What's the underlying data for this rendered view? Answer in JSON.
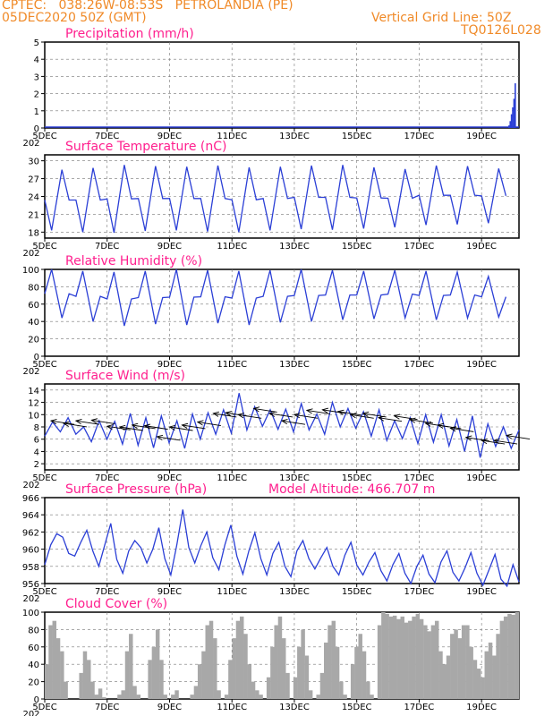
{
  "header": {
    "line1": "CPTEC:   038:26W-08:53S   PETROLANDIA (PE)",
    "line2": "05DEC2020 50Z (GMT)",
    "grid_note": "Vertical Grid Line: 50Z",
    "code": "TQ0126L028"
  },
  "colors": {
    "header": "#f08a28",
    "title": "#ff1f8e",
    "line": "#2b3fd6",
    "cloud": "#a8a8a8",
    "grid": "#777777"
  },
  "x_ticks": [
    "5DEC",
    "7DEC",
    "9DEC",
    "11DEC",
    "13DEC",
    "15DEC",
    "17DEC",
    "19DEC"
  ],
  "x_tick_days": [
    0,
    2,
    4,
    6,
    8,
    10,
    12,
    14
  ],
  "x_range_days": [
    0,
    15.2
  ],
  "year_fragment": "202",
  "chart_data": [
    {
      "id": "precip",
      "type": "bar",
      "title": "Precipitation (mm/h)",
      "ylim": [
        0,
        5
      ],
      "yticks": [
        0,
        1,
        2,
        3,
        4,
        5
      ],
      "x_days": [
        14.88,
        14.92,
        14.96,
        15.0,
        15.04,
        15.08
      ],
      "values": [
        0.15,
        0.4,
        0.8,
        1.2,
        1.7,
        2.6
      ]
    },
    {
      "id": "temp",
      "type": "line",
      "title": "Surface Temperature (nC)",
      "ylim": [
        17,
        31
      ],
      "yticks": [
        18,
        21,
        24,
        27,
        30
      ],
      "min_values": [
        18.3,
        18.0,
        17.9,
        18.2,
        18.3,
        18.1,
        18.0,
        18.3,
        18.5,
        18.4,
        18.6,
        18.8,
        19.2,
        19.3,
        19.5
      ],
      "max_values": [
        28.5,
        28.8,
        29.3,
        29.1,
        29.0,
        29.2,
        28.9,
        29.0,
        29.2,
        29.3,
        28.9,
        28.6,
        29.2,
        29.1,
        28.7
      ]
    },
    {
      "id": "rh",
      "type": "line",
      "title": "Relative Humidity (%)",
      "ylim": [
        0,
        100
      ],
      "yticks": [
        0,
        20,
        40,
        60,
        80,
        100
      ],
      "min_values": [
        44,
        40,
        35,
        37,
        36,
        38,
        36,
        39,
        40,
        42,
        43,
        44,
        42,
        44,
        45
      ],
      "max_values": [
        100,
        98,
        97,
        98,
        100,
        99,
        98,
        99,
        100,
        99,
        98,
        99,
        98,
        97,
        92
      ]
    },
    {
      "id": "wind",
      "type": "line",
      "title": "Surface Wind (m/s)",
      "ylim": [
        1,
        15
      ],
      "yticks": [
        2,
        4,
        6,
        8,
        10,
        12,
        14
      ],
      "values": [
        6.5,
        8.8,
        7.2,
        9.5,
        6.8,
        8.0,
        5.6,
        9.0,
        6.0,
        8.9,
        5.2,
        10.2,
        5.0,
        9.5,
        4.6,
        9.8,
        5.4,
        9.0,
        4.5,
        10.1,
        6.0,
        10.3,
        6.8,
        10.8,
        7.0,
        13.5,
        7.5,
        11.3,
        8.1,
        10.8,
        7.6,
        10.9,
        7.2,
        11.8,
        7.5,
        10.1,
        6.8,
        12.0,
        8.0,
        11.0,
        7.8,
        10.5,
        6.5,
        10.8,
        5.8,
        9.0,
        6.1,
        9.5,
        5.3,
        10.0,
        5.5,
        10.0,
        4.9,
        9.2,
        4.0,
        9.8,
        3.0,
        8.5,
        4.8,
        8.0,
        4.5,
        7.5
      ],
      "arrows_days": [
        0.2,
        0.6,
        1.0,
        1.5,
        2.0,
        2.4,
        2.8,
        3.2,
        3.6,
        4.0,
        4.4,
        4.9,
        5.4,
        5.8,
        6.2,
        6.7,
        7.2,
        7.6,
        8.0,
        8.4,
        8.9,
        9.4,
        9.8,
        10.2,
        10.7,
        11.2,
        11.7,
        12.2,
        12.6,
        13.0,
        13.5,
        14.0,
        14.4,
        14.8
      ],
      "arrows_speed": [
        9.0,
        8.6,
        9.0,
        9.1,
        8.1,
        8.0,
        8.3,
        8.2,
        6.4,
        8.0,
        8.3,
        8.8,
        10.2,
        10.3,
        10.0,
        11.0,
        10.2,
        9.0,
        10.0,
        10.7,
        10.8,
        10.5,
        10.0,
        10.2,
        9.5,
        9.8,
        9.2,
        8.6,
        8.3,
        7.8,
        6.3,
        5.8,
        5.8,
        6.6
      ]
    },
    {
      "id": "pres",
      "type": "line",
      "title": "Surface Pressure (hPa)",
      "annotation": "Model Altitude: 466.707 m",
      "ylim": [
        956,
        966
      ],
      "yticks": [
        956,
        958,
        960,
        962,
        964,
        966
      ],
      "values": [
        958.2,
        960.5,
        961.8,
        961.4,
        959.5,
        959.2,
        960.8,
        962.2,
        959.8,
        958.0,
        960.5,
        963.0,
        958.8,
        957.2,
        959.8,
        961.0,
        960.2,
        958.4,
        960.0,
        962.5,
        958.9,
        957.0,
        960.5,
        964.6,
        960.2,
        958.4,
        960.4,
        962.0,
        959.0,
        957.6,
        960.5,
        962.8,
        959.2,
        957.1,
        959.8,
        961.9,
        958.9,
        957.0,
        959.5,
        960.8,
        958.0,
        956.8,
        959.8,
        961.0,
        958.9,
        957.7,
        959.0,
        960.2,
        958.0,
        957.0,
        959.3,
        960.8,
        958.1,
        957.0,
        958.5,
        959.6,
        957.5,
        956.3,
        958.2,
        959.5,
        957.2,
        956.0,
        958.0,
        959.3,
        957.1,
        956.1,
        958.5,
        959.8,
        957.3,
        956.3,
        957.8,
        959.6,
        957.2,
        955.8,
        957.6,
        959.4,
        956.5,
        955.7,
        958.2,
        956.2
      ]
    },
    {
      "id": "cloud",
      "type": "area",
      "title": "Cloud Cover (%)",
      "ylim": [
        0,
        100
      ],
      "yticks": [
        0,
        20,
        40,
        60,
        80,
        100
      ],
      "values": [
        40,
        85,
        90,
        70,
        55,
        20,
        0,
        0,
        0,
        30,
        55,
        45,
        20,
        5,
        12,
        2,
        0,
        0,
        0,
        5,
        10,
        55,
        75,
        15,
        5,
        0,
        0,
        45,
        60,
        80,
        45,
        5,
        0,
        5,
        10,
        0,
        0,
        0,
        5,
        15,
        40,
        55,
        85,
        90,
        70,
        10,
        0,
        5,
        45,
        70,
        90,
        95,
        75,
        40,
        20,
        10,
        5,
        0,
        25,
        60,
        85,
        95,
        70,
        30,
        0,
        25,
        60,
        80,
        50,
        10,
        0,
        5,
        30,
        65,
        85,
        90,
        60,
        20,
        5,
        0,
        40,
        60,
        75,
        55,
        20,
        5,
        0,
        85,
        100,
        98,
        95,
        96,
        92,
        95,
        88,
        90,
        95,
        98,
        92,
        85,
        78,
        85,
        90,
        55,
        40,
        50,
        75,
        80,
        70,
        85,
        85,
        60,
        45,
        35,
        25,
        55,
        65,
        50,
        75,
        90,
        95,
        98,
        97,
        100
      ]
    }
  ]
}
